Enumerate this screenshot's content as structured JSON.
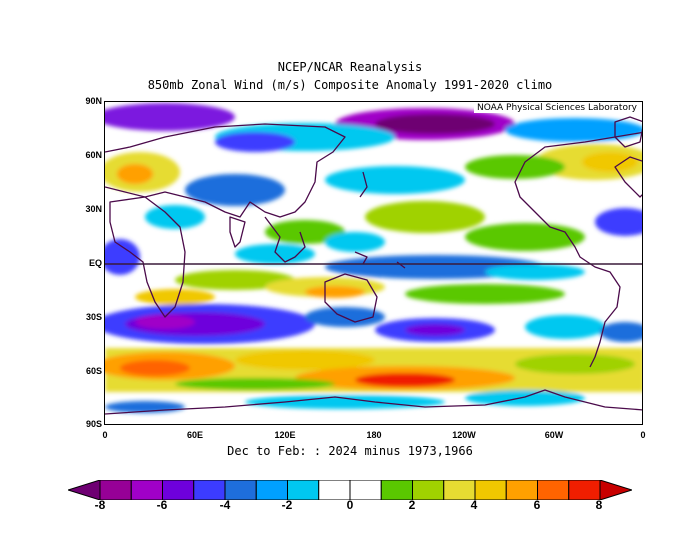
{
  "title": "NCEP/NCAR Reanalysis",
  "subtitle": "850mb Zonal Wind (m/s) Composite Anomaly 1991-2020 climo",
  "credit": "NOAA Physical Sciences Laboratory",
  "caption": "Dec to Feb: : 2024 minus 1973,1966",
  "lat_labels": [
    "90N",
    "60N",
    "30N",
    "EQ",
    "30S",
    "60S",
    "90S"
  ],
  "lon_labels": [
    "0",
    "60E",
    "120E",
    "180",
    "120W",
    "60W",
    "0"
  ],
  "colorbar": {
    "labels": [
      "-8",
      "-6",
      "-4",
      "-2",
      "0",
      "2",
      "4",
      "6",
      "8"
    ],
    "bounds": [
      -8,
      -7,
      -6,
      -5,
      -4,
      -3,
      -2,
      -1,
      0,
      1,
      2,
      3,
      4,
      5,
      6,
      7,
      8
    ],
    "colors": [
      "#6e0072",
      "#960096",
      "#a000c8",
      "#6e00dc",
      "#3c3cff",
      "#1e6edc",
      "#00a0ff",
      "#00c8f0",
      "#ffffff",
      "#ffffff",
      "#5ac800",
      "#a0d200",
      "#e6dc32",
      "#f0c800",
      "#ffa000",
      "#ff6400",
      "#f01e00",
      "#c80000"
    ]
  },
  "map_features": {
    "equator_line": true,
    "dominant_anomalies": [
      {
        "region": "Southern Ocean band near 50S-60S",
        "sign": "positive"
      },
      {
        "region": "Southern midlatitudes near 35S-45S",
        "sign": "negative"
      },
      {
        "region": "Arctic near 80N",
        "sign": "negative"
      },
      {
        "region": "Northeast Pacific / North America near 50N",
        "sign": "positive"
      }
    ]
  }
}
